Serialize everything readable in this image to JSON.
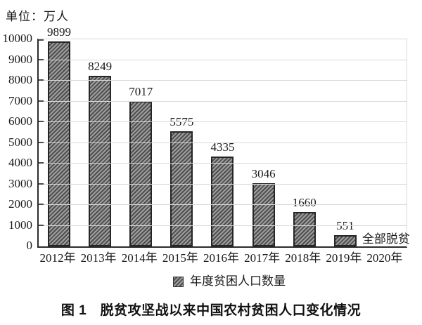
{
  "page": {
    "unit_label": "单位：万人",
    "caption": "图 1　脱贫攻坚战以来中国农村贫困人口变化情况"
  },
  "chart_data": {
    "type": "bar",
    "title": "脱贫攻坚战以来中国农村贫困人口变化情况",
    "unit": "万人",
    "categories": [
      "2012年",
      "2013年",
      "2014年",
      "2015年",
      "2016年",
      "2017年",
      "2018年",
      "2019年",
      "2020年"
    ],
    "values": [
      9899,
      8249,
      7017,
      5575,
      4335,
      3046,
      1660,
      551,
      null
    ],
    "bar_value_labels": [
      "9899",
      "8249",
      "7017",
      "5575",
      "4335",
      "3046",
      "1660",
      "551",
      ""
    ],
    "annotations": [
      {
        "category": "2020年",
        "text": "全部脱贫"
      }
    ],
    "legend": [
      {
        "label": "年度贫困人口数量",
        "swatch": "gray-diagonal-hatch"
      }
    ],
    "legend_position": "bottom-center",
    "xlabel": "",
    "ylabel": "",
    "ylim": [
      0,
      10000
    ],
    "ytick_step": 1000,
    "yticks": [
      "0",
      "1000",
      "2000",
      "3000",
      "4000",
      "5000",
      "6000",
      "7000",
      "8000",
      "9000",
      "10000"
    ],
    "grid": "horizontal",
    "colors": {
      "bar_fill": "#9e9e9e",
      "bar_hatch": "#4f4f4f",
      "bar_border": "#262626",
      "gridline": "#d9d9d9",
      "axis": "#2b2b2b",
      "text": "#1a1a1a"
    }
  }
}
